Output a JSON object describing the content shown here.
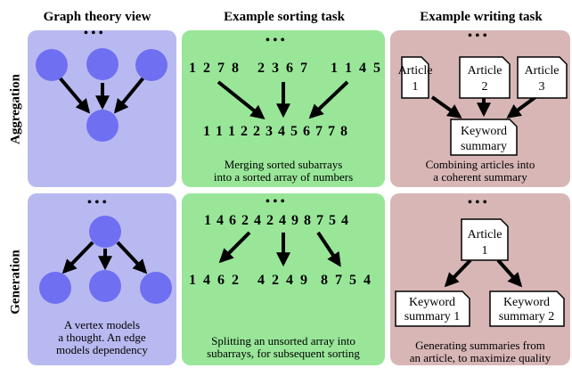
{
  "headers": {
    "graph": "Graph theory view",
    "sorting": "Example sorting task",
    "writing": "Example writing task"
  },
  "rows": {
    "aggregation": "Aggregation",
    "generation": "Generation"
  },
  "ellipsis": "• • •",
  "aggregation": {
    "sort_inputs": [
      "1 2 7 8",
      "2 3 6 7",
      "1 1 4 5"
    ],
    "sort_output": "1 1 1 2 2 3 4 5 6 7 7 8",
    "sort_caption": [
      "Merging sorted subarrays",
      "into a sorted array of numbers"
    ],
    "articles": [
      {
        "line1": "Article",
        "line2": "1"
      },
      {
        "line1": "Article",
        "line2": "2"
      },
      {
        "line1": "Article",
        "line2": "3"
      }
    ],
    "summary": {
      "line1": "Keyword",
      "line2": "summary"
    },
    "write_caption": [
      "Combining articles into",
      "a coherent summary"
    ]
  },
  "generation": {
    "graph_caption": [
      "A vertex models",
      "a thought. An edge",
      "models dependency"
    ],
    "sort_input": "1 4 6 2 4 2 4 9 8 7 5 4",
    "sort_outputs": [
      "1 4 6 2",
      "4 2 4 9",
      "8 7 5 4"
    ],
    "sort_caption": [
      "Splitting an unsorted array into",
      "subarrays, for subsequent sorting"
    ],
    "article": {
      "line1": "Article",
      "line2": "1"
    },
    "summaries": [
      {
        "line1": "Keyword",
        "line2": "summary 1"
      },
      {
        "line1": "Keyword",
        "line2": "summary 2"
      }
    ],
    "write_caption": [
      "Generating summaries from",
      "an article, to maximize quality"
    ]
  },
  "colors": {
    "node": "#6f6ff2",
    "graph_panel": "#b9b9f1",
    "sort_panel": "#99e699",
    "write_panel": "#d8b6b6"
  }
}
